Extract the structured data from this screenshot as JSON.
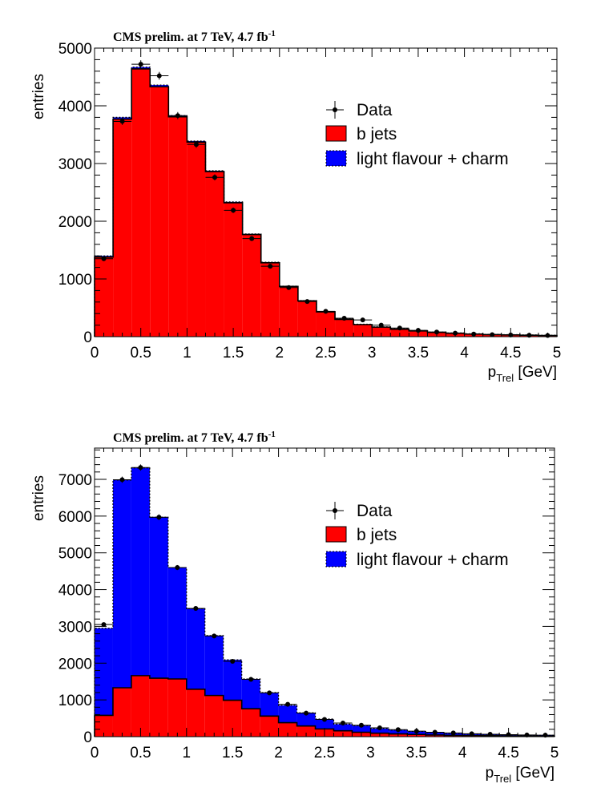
{
  "colors": {
    "bjets": "#ff0000",
    "light": "#0000ff",
    "data": "#000000"
  },
  "chart_data": [
    {
      "type": "bar",
      "stacked": true,
      "title_main": "CMS prelim. at 7 TeV, 4.7 fb",
      "title_sup": "-1",
      "xlabel_main": "p",
      "xlabel_sub": "Trel",
      "xlabel_rest": " [GeV]",
      "ylabel": "entries",
      "xlim": [
        0,
        5
      ],
      "ylim": [
        0,
        5000
      ],
      "bin_width": 0.2,
      "x_ticks": [
        "0",
        "0.5",
        "1",
        "1.5",
        "2",
        "2.5",
        "3",
        "3.5",
        "4",
        "4.5",
        "5"
      ],
      "y_ticks": [
        "0",
        "1000",
        "2000",
        "3000",
        "4000",
        "5000"
      ],
      "y_tick_values": [
        0,
        1000,
        2000,
        3000,
        4000,
        5000
      ],
      "legend": {
        "position": "top-right",
        "entries": [
          "Data",
          "b jets",
          "light flavour + charm"
        ]
      },
      "series": [
        {
          "name": "b jets",
          "values": [
            1380,
            3770,
            4640,
            4330,
            3810,
            3370,
            2860,
            2320,
            1770,
            1280,
            870,
            620,
            430,
            300,
            210,
            165,
            130,
            100,
            75,
            60,
            45,
            35,
            30,
            25,
            20
          ]
        },
        {
          "name": "light flavour + charm",
          "values": [
            20,
            30,
            30,
            30,
            20,
            20,
            15,
            15,
            10,
            10,
            5,
            5,
            5,
            5,
            5,
            5,
            5,
            5,
            5,
            5,
            5,
            5,
            5,
            5,
            5
          ]
        }
      ],
      "data_points": [
        1350,
        3730,
        4720,
        4520,
        3830,
        3330,
        2760,
        2190,
        1700,
        1220,
        850,
        610,
        440,
        320,
        290,
        200,
        150,
        110,
        80,
        60,
        45,
        35,
        30,
        25,
        20
      ]
    },
    {
      "type": "bar",
      "stacked": true,
      "title_main": "CMS prelim. at 7 TeV, 4.7 fb",
      "title_sup": "-1",
      "xlabel_main": "p",
      "xlabel_sub": "Trel",
      "xlabel_rest": " [GeV]",
      "ylabel": "entries",
      "xlim": [
        0,
        5
      ],
      "ylim": [
        0,
        7850
      ],
      "bin_width": 0.2,
      "x_ticks": [
        "0",
        "0.5",
        "1",
        "1.5",
        "2",
        "2.5",
        "3",
        "3.5",
        "4",
        "4.5",
        "5"
      ],
      "y_ticks": [
        "0",
        "1000",
        "2000",
        "3000",
        "4000",
        "5000",
        "6000",
        "7000"
      ],
      "y_tick_values": [
        0,
        1000,
        2000,
        3000,
        4000,
        5000,
        6000,
        7000
      ],
      "legend": {
        "position": "top-right",
        "entries": [
          "Data",
          "b jets",
          "light flavour + charm"
        ]
      },
      "series": [
        {
          "name": "b jets",
          "values": [
            580,
            1330,
            1660,
            1590,
            1570,
            1290,
            1120,
            990,
            760,
            560,
            380,
            290,
            210,
            160,
            120,
            95,
            75,
            60,
            45,
            35,
            30,
            25,
            20,
            15,
            10
          ]
        },
        {
          "name": "light flavour + charm",
          "values": [
            2370,
            5650,
            5650,
            4380,
            3030,
            2190,
            1630,
            1100,
            810,
            640,
            470,
            360,
            270,
            180,
            180,
            125,
            105,
            80,
            65,
            55,
            40,
            35,
            30,
            25,
            25
          ]
        }
      ],
      "data_points": [
        3050,
        6990,
        7320,
        5970,
        4600,
        3490,
        2740,
        2050,
        1560,
        1190,
        880,
        640,
        470,
        370,
        310,
        240,
        190,
        150,
        120,
        100,
        80,
        65,
        55,
        45,
        40
      ]
    }
  ]
}
